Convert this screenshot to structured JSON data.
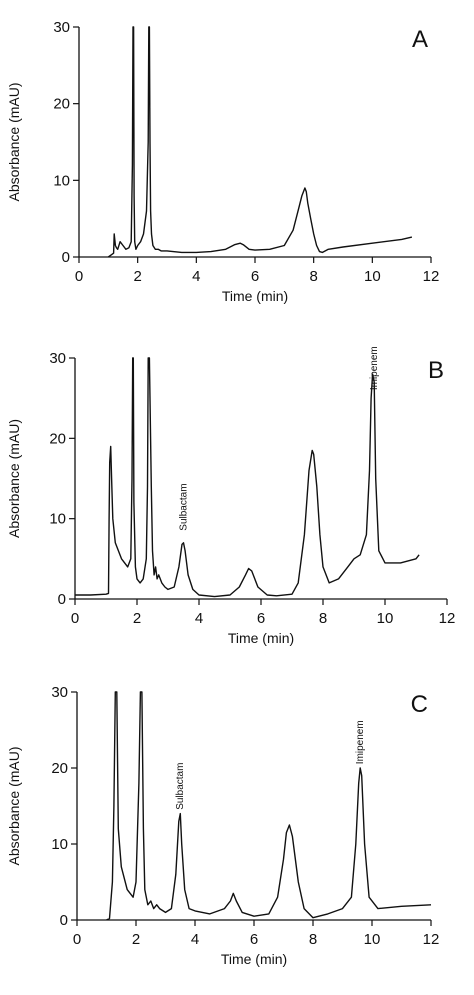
{
  "figure": {
    "line_color": "#111111",
    "background": "#ffffff"
  },
  "chart_data": [
    {
      "type": "line",
      "panel_label": "A",
      "xlabel": "Time (min)",
      "ylabel": "Absorbance (mAU)",
      "xlim": [
        0,
        12
      ],
      "ylim": [
        0,
        30
      ],
      "x_ticks": [
        0,
        2,
        4,
        6,
        8,
        10,
        12
      ],
      "y_ticks": [
        0,
        10,
        20,
        30
      ],
      "grid": false,
      "legend": "none",
      "annotations": [],
      "series": [
        {
          "x": [
            1.0,
            1.18,
            1.2,
            1.24,
            1.28,
            1.32,
            1.4,
            1.5,
            1.6,
            1.7,
            1.78,
            1.82,
            1.84,
            1.86,
            1.88,
            1.9,
            1.94,
            2.0,
            2.1,
            2.2,
            2.3,
            2.36,
            2.38,
            2.4,
            2.42,
            2.44,
            2.47,
            2.52,
            2.6,
            2.7,
            2.8,
            3.0,
            3.5,
            4.0,
            4.5,
            5.0,
            5.3,
            5.5,
            5.6,
            5.8,
            6.0,
            6.5,
            7.0,
            7.3,
            7.5,
            7.6,
            7.7,
            7.75,
            7.8,
            7.9,
            8.0,
            8.1,
            8.2,
            8.3,
            8.5,
            9.0,
            10.0,
            11.0,
            11.35
          ],
          "y": [
            0.0,
            0.5,
            3.0,
            1.5,
            1.2,
            1.0,
            2.0,
            1.5,
            1.0,
            1.2,
            2.0,
            12.0,
            30.0,
            30.0,
            8.0,
            2.0,
            1.0,
            1.5,
            2.0,
            3.0,
            6.0,
            15.0,
            30.0,
            30.0,
            15.0,
            6.0,
            3.0,
            1.5,
            1.0,
            1.0,
            0.8,
            0.8,
            0.6,
            0.6,
            0.7,
            1.0,
            1.6,
            1.8,
            1.6,
            1.0,
            0.9,
            1.0,
            1.5,
            3.5,
            6.5,
            8.0,
            9.0,
            8.5,
            7.0,
            5.0,
            3.0,
            1.5,
            0.7,
            0.6,
            1.0,
            1.3,
            1.8,
            2.3,
            2.6
          ]
        }
      ]
    },
    {
      "type": "line",
      "panel_label": "B",
      "xlabel": "Time (min)",
      "ylabel": "Absorbance (mAU)",
      "xlim": [
        0,
        12
      ],
      "ylim": [
        0,
        30
      ],
      "x_ticks": [
        0,
        2,
        4,
        6,
        8,
        10,
        12
      ],
      "y_ticks": [
        0,
        10,
        20,
        30
      ],
      "grid": false,
      "legend": "none",
      "annotations": [
        {
          "text": "Sulbactam",
          "x": 3.5,
          "y": 8.5
        },
        {
          "text": "Imipenem",
          "x": 9.65,
          "y": 26.0
        }
      ],
      "series": [
        {
          "x": [
            0.0,
            0.5,
            1.0,
            1.08,
            1.1,
            1.12,
            1.15,
            1.18,
            1.22,
            1.3,
            1.5,
            1.7,
            1.8,
            1.84,
            1.86,
            1.88,
            1.9,
            1.95,
            2.0,
            2.1,
            2.2,
            2.3,
            2.34,
            2.36,
            2.4,
            2.46,
            2.5,
            2.55,
            2.6,
            2.65,
            2.7,
            2.8,
            2.9,
            3.0,
            3.2,
            3.35,
            3.45,
            3.5,
            3.55,
            3.65,
            3.8,
            4.0,
            4.5,
            5.0,
            5.3,
            5.5,
            5.6,
            5.7,
            5.9,
            6.2,
            6.5,
            7.0,
            7.2,
            7.4,
            7.55,
            7.65,
            7.7,
            7.8,
            7.9,
            8.0,
            8.2,
            8.5,
            8.8,
            9.0,
            9.2,
            9.4,
            9.5,
            9.55,
            9.6,
            9.65,
            9.7,
            9.8,
            10.0,
            10.5,
            11.0,
            11.1
          ],
          "y": [
            0.5,
            0.5,
            0.6,
            0.7,
            10.0,
            17.0,
            19.0,
            15.0,
            10.0,
            7.0,
            5.0,
            4.0,
            5.0,
            15.0,
            30.0,
            30.0,
            12.0,
            4.0,
            2.5,
            2.0,
            2.5,
            5.0,
            14.0,
            30.0,
            30.0,
            14.0,
            6.0,
            3.0,
            4.0,
            2.5,
            3.0,
            2.0,
            1.5,
            1.2,
            1.5,
            4.0,
            6.8,
            7.0,
            6.0,
            3.0,
            1.2,
            0.5,
            0.3,
            0.5,
            1.5,
            3.0,
            3.8,
            3.5,
            1.5,
            0.5,
            0.4,
            0.6,
            2.0,
            8.0,
            16.0,
            18.5,
            18.0,
            14.0,
            8.0,
            4.0,
            2.0,
            2.5,
            4.0,
            5.0,
            5.5,
            8.0,
            16.0,
            25.0,
            28.0,
            27.0,
            15.0,
            6.0,
            4.5,
            4.5,
            5.0,
            5.5
          ]
        }
      ]
    },
    {
      "type": "line",
      "panel_label": "C",
      "xlabel": "Time (min)",
      "ylabel": "Absorbance (mAU)",
      "xlim": [
        0,
        12
      ],
      "ylim": [
        0,
        30
      ],
      "x_ticks": [
        0,
        2,
        4,
        6,
        8,
        10,
        12
      ],
      "y_ticks": [
        0,
        10,
        20,
        30
      ],
      "grid": false,
      "legend": "none",
      "annotations": [
        {
          "text": "Sulbactam",
          "x": 3.5,
          "y": 14.5
        },
        {
          "text": "Imipenem",
          "x": 9.6,
          "y": 20.5
        }
      ],
      "series": [
        {
          "x": [
            1.0,
            1.1,
            1.2,
            1.25,
            1.3,
            1.35,
            1.4,
            1.5,
            1.7,
            1.9,
            2.0,
            2.1,
            2.15,
            2.2,
            2.25,
            2.3,
            2.4,
            2.5,
            2.6,
            2.7,
            2.8,
            3.0,
            3.2,
            3.35,
            3.45,
            3.5,
            3.55,
            3.65,
            3.8,
            4.0,
            4.5,
            5.0,
            5.2,
            5.3,
            5.4,
            5.6,
            6.0,
            6.5,
            6.8,
            7.0,
            7.1,
            7.2,
            7.3,
            7.5,
            7.7,
            8.0,
            8.5,
            9.0,
            9.3,
            9.45,
            9.55,
            9.6,
            9.65,
            9.75,
            9.9,
            10.2,
            11.0,
            12.0
          ],
          "y": [
            0.0,
            0.2,
            5.0,
            15.0,
            30.0,
            30.0,
            12.0,
            7.0,
            4.0,
            3.0,
            5.0,
            18.0,
            30.0,
            30.0,
            12.0,
            4.0,
            2.0,
            2.5,
            1.5,
            2.0,
            1.5,
            1.0,
            1.5,
            6.0,
            13.0,
            14.0,
            10.0,
            4.0,
            1.5,
            1.2,
            0.8,
            1.5,
            2.5,
            3.5,
            2.5,
            1.0,
            0.5,
            0.8,
            3.0,
            8.0,
            11.5,
            12.5,
            11.0,
            5.0,
            1.5,
            0.3,
            0.8,
            1.5,
            3.0,
            10.0,
            18.0,
            20.0,
            19.0,
            10.0,
            3.0,
            1.5,
            1.8,
            2.0
          ]
        }
      ]
    }
  ]
}
